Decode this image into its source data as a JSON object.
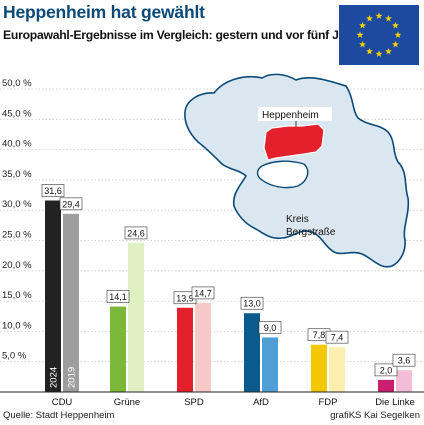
{
  "header": {
    "title": "Heppenheim hat gewählt",
    "subtitle": "Europawahl-Ergebnisse im Vergleich: gestern und vor fünf Jahren"
  },
  "footer": {
    "source": "Quelle: Stadt Heppenheim",
    "credit": "grafiKS Kai Segelken"
  },
  "map": {
    "town_label": "Heppenheim",
    "district_label_line1": "Kreis",
    "district_label_line2": "Bergstraße",
    "town_color": "#e4202c",
    "district_color": "#dbe7f0",
    "outline_color": "#0a4a78"
  },
  "flag": {
    "icon": "eu-flag-icon",
    "background": "#1d4aa0",
    "star_color": "#f5d100"
  },
  "chart_data": {
    "type": "bar",
    "title": "",
    "xlabel": "",
    "ylabel": "",
    "ylim": [
      0,
      52
    ],
    "yticks": [
      5,
      10,
      15,
      20,
      25,
      30,
      35,
      40,
      45,
      50
    ],
    "ytick_labels": [
      "5,0 %",
      "10,0 %",
      "15,0 %",
      "20,0 %",
      "25,0 %",
      "30,0 %",
      "35,0 %",
      "40,0 %",
      "45,0 %",
      "50,0 %"
    ],
    "grid": true,
    "legend": "none",
    "categories": [
      "CDU",
      "Grüne",
      "SPD",
      "AfD",
      "FDP",
      "Die Linke"
    ],
    "series": [
      {
        "year_label": "2024",
        "values": [
          31.6,
          14.1,
          13.9,
          13.0,
          7.8,
          2.0
        ],
        "value_labels": [
          "31,6",
          "14,1",
          "13,9",
          "13,0",
          "7,8",
          "2,0"
        ],
        "colors": [
          "#222222",
          "#7cb83a",
          "#e4202c",
          "#0a5a8c",
          "#f3c800",
          "#c8206e"
        ]
      },
      {
        "year_label": "2019",
        "values": [
          29.4,
          24.6,
          14.7,
          9.0,
          7.4,
          3.6
        ],
        "value_labels": [
          "29,4",
          "24,6",
          "14,7",
          "9,0",
          "7,4",
          "3,6"
        ],
        "colors": [
          "#9e9e9e",
          "#dff0c2",
          "#f7c8c8",
          "#4f9fd6",
          "#fdefb0",
          "#f3bcd7"
        ]
      }
    ]
  }
}
